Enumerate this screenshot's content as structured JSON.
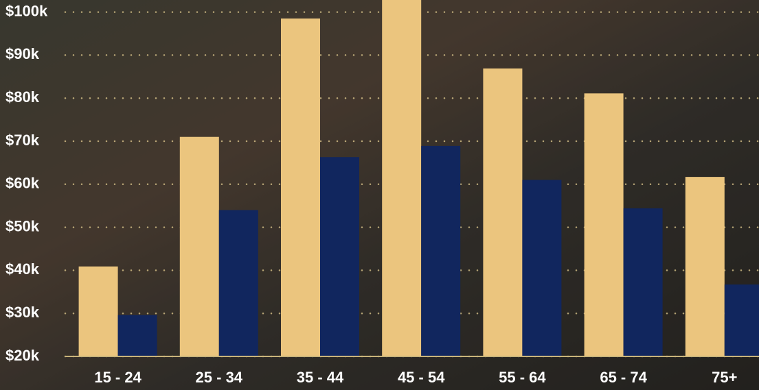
{
  "chart_data": {
    "type": "bar",
    "categories": [
      "15 - 24",
      "25 - 34",
      "35 - 44",
      "45 - 54",
      "55 - 64",
      "65 - 74",
      "75+"
    ],
    "series": [
      {
        "color": "#ebc57e",
        "values": [
          40.9,
          71,
          98.5,
          102.8,
          86.9,
          81.1,
          61.7
        ]
      },
      {
        "color": "#11265e",
        "values": [
          29.6,
          54,
          66.3,
          68.9,
          61,
          54.4,
          36.7
        ]
      }
    ],
    "ylim": [
      20,
      102.8
    ],
    "yticks": [
      {
        "value": 20,
        "label": "$20k"
      },
      {
        "value": 30,
        "label": "$30k"
      },
      {
        "value": 40,
        "label": "$40k"
      },
      {
        "value": 50,
        "label": "$50k"
      },
      {
        "value": 60,
        "label": "$60k"
      },
      {
        "value": 70,
        "label": "$70k"
      },
      {
        "value": 80,
        "label": "$80k"
      },
      {
        "value": 90,
        "label": "$90k"
      },
      {
        "value": 100,
        "label": "$100k"
      }
    ],
    "grid": true
  }
}
